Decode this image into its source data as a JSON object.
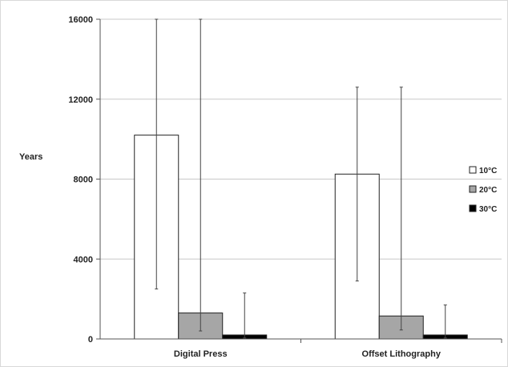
{
  "chart_data": {
    "type": "bar",
    "ylabel": "Years",
    "ylim": [
      0,
      16000
    ],
    "yticks": [
      "0",
      "4000",
      "8000",
      "12000",
      "16000"
    ],
    "categories": [
      "Digital Press",
      "Offset Lithography"
    ],
    "series": [
      {
        "name": "10°C",
        "color": "#ffffff",
        "values": [
          10200,
          8250
        ],
        "error_low": [
          2500,
          2900
        ],
        "error_high": [
          16000,
          12600
        ]
      },
      {
        "name": "20°C",
        "color": "#a6a6a6",
        "values": [
          1300,
          1150
        ],
        "error_low": [
          400,
          450
        ],
        "error_high": [
          16000,
          12600
        ]
      },
      {
        "name": "30°C",
        "color": "#000000",
        "values": [
          200,
          200
        ],
        "error_low": [
          50,
          50
        ],
        "error_high": [
          2300,
          1700
        ]
      }
    ],
    "grid": true,
    "legend": "right"
  }
}
